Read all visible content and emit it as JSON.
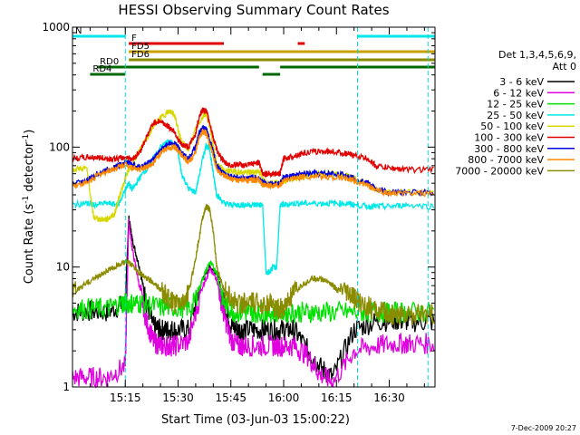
{
  "chart_data": {
    "type": "line",
    "title": "HESSI Observing Summary Count Rates",
    "xlabel": "Start Time (03-Jun-03 15:00:22)",
    "ylabel_main": "Count Rate (s",
    "ylabel_sup1": "-1",
    "ylabel_mid": " detector",
    "ylabel_sup2": "-1",
    "ylabel_end": ")",
    "y_scale": "log",
    "ylim": [
      1,
      1000
    ],
    "xlim_minutes": [
      0,
      103
    ],
    "x_ticks": [
      {
        "label": "15:15",
        "minutes": 15
      },
      {
        "label": "15:30",
        "minutes": 30
      },
      {
        "label": "15:45",
        "minutes": 45
      },
      {
        "label": "16:00",
        "minutes": 60
      },
      {
        "label": "16:15",
        "minutes": 75
      },
      {
        "label": "16:30",
        "minutes": 90
      }
    ],
    "y_ticks": [
      {
        "label": "1",
        "value": 1
      },
      {
        "label": "10",
        "value": 10
      },
      {
        "label": "100",
        "value": 100
      },
      {
        "label": "1000",
        "value": 1000
      }
    ],
    "legend_header": [
      "Det 1,3,4,5,6,9,",
      "Att 0"
    ],
    "legend_position": "right",
    "series": [
      {
        "name": "3 - 6 keV",
        "color": "#000000",
        "x": [
          0,
          5,
          10,
          15,
          16,
          17,
          19,
          21,
          23,
          25,
          27,
          29,
          33,
          37,
          39,
          41,
          43,
          45,
          47,
          49,
          53,
          57,
          60,
          63,
          67,
          70,
          74,
          80,
          86,
          92,
          96,
          103
        ],
        "y": [
          4.2,
          4.3,
          4.2,
          5,
          26,
          17,
          10,
          5,
          3.2,
          3,
          3,
          3,
          3,
          8,
          10,
          9,
          5,
          3.3,
          3,
          3,
          3,
          3,
          3,
          3,
          2,
          1.5,
          1.2,
          3,
          3.5,
          3.6,
          3.5,
          3.5
        ]
      },
      {
        "name": "6 - 12 keV",
        "color": "#e000e0",
        "x": [
          0,
          5,
          10,
          15,
          16,
          17,
          19,
          21,
          23,
          25,
          27,
          29,
          33,
          37,
          39,
          41,
          43,
          45,
          47,
          49,
          53,
          57,
          60,
          63,
          67,
          70,
          74,
          80,
          86,
          92,
          96,
          103
        ],
        "y": [
          1.2,
          1.2,
          1.2,
          1.5,
          24,
          14,
          7,
          3.5,
          2.4,
          2.2,
          2.2,
          2.2,
          2.4,
          7,
          9.5,
          8,
          4,
          2.5,
          2.2,
          2.2,
          2.2,
          2.2,
          2.2,
          2.2,
          1.8,
          1.3,
          1.1,
          2,
          2.2,
          2.3,
          2.3,
          2.3
        ]
      },
      {
        "name": "12 - 25 keV",
        "color": "#00e000",
        "x": [
          0,
          5,
          10,
          14,
          15,
          17,
          20,
          25,
          30,
          34,
          37,
          39,
          41,
          43,
          46,
          50,
          52,
          55,
          58,
          62,
          66,
          70,
          76,
          82,
          86,
          90,
          95,
          103
        ],
        "y": [
          4.5,
          4.5,
          4.5,
          5,
          5,
          5,
          5,
          4.6,
          4.6,
          4.6,
          8,
          11,
          9,
          5,
          4.2,
          4.2,
          4.2,
          4.2,
          4.2,
          4.2,
          4.2,
          4.2,
          4.2,
          4.2,
          4.2,
          4.2,
          4.2,
          4.2
        ]
      },
      {
        "name": "25 - 50 keV",
        "color": "#00e8e8",
        "x": [
          0,
          4,
          6,
          10,
          13,
          15,
          16,
          17,
          19,
          22,
          25,
          27,
          29,
          30,
          31,
          33,
          35,
          37,
          38,
          39,
          40,
          41,
          43,
          45,
          47,
          49,
          51,
          53,
          54,
          55,
          56,
          57,
          58,
          59,
          60,
          63,
          66,
          70,
          74,
          78,
          80,
          84,
          86,
          90,
          95,
          103
        ],
        "y": [
          33,
          34,
          33,
          34,
          33,
          44,
          50,
          44,
          55,
          72,
          100,
          110,
          108,
          90,
          60,
          45,
          42,
          80,
          105,
          95,
          60,
          40,
          34,
          33,
          33,
          33,
          33,
          33,
          33,
          9,
          9,
          10,
          10,
          33,
          33,
          34,
          34,
          34,
          34,
          34,
          33,
          32,
          32,
          32,
          33,
          32
        ]
      },
      {
        "name": "50 - 100 keV",
        "color": "#d8d800",
        "x": [
          0,
          4,
          6,
          8,
          10,
          12,
          13,
          15,
          16,
          17,
          19,
          21,
          23,
          25,
          27,
          28,
          29,
          30,
          31,
          33,
          35,
          37,
          38,
          39,
          40,
          41,
          43,
          45,
          47,
          49,
          51,
          53,
          54,
          55,
          57,
          59,
          60,
          63,
          66,
          70,
          74,
          78,
          80,
          84,
          86,
          90,
          95,
          103
        ],
        "y": [
          65,
          67,
          26,
          25,
          25,
          28,
          36,
          55,
          65,
          70,
          95,
          115,
          150,
          175,
          195,
          200,
          185,
          140,
          110,
          95,
          140,
          180,
          190,
          150,
          100,
          72,
          64,
          63,
          62,
          61,
          62,
          63,
          55,
          50,
          50,
          51,
          52,
          54,
          58,
          60,
          60,
          58,
          55,
          48,
          45,
          42,
          42,
          42
        ]
      },
      {
        "name": "100 - 300 keV",
        "color": "#e00000",
        "x": [
          0,
          4,
          7,
          10,
          13,
          15,
          17,
          19,
          21,
          23,
          25,
          27,
          29,
          30,
          31,
          33,
          35,
          36,
          37,
          38,
          39,
          40,
          41,
          43,
          45,
          47,
          49,
          51,
          53,
          54,
          55,
          57,
          59,
          60,
          63,
          66,
          70,
          74,
          78,
          80,
          84,
          86,
          90,
          95,
          103
        ],
        "y": [
          80,
          82,
          82,
          80,
          80,
          82,
          80,
          90,
          120,
          160,
          165,
          150,
          135,
          115,
          105,
          100,
          130,
          180,
          205,
          200,
          160,
          120,
          95,
          75,
          70,
          72,
          70,
          72,
          75,
          60,
          60,
          60,
          60,
          80,
          85,
          90,
          92,
          92,
          88,
          85,
          80,
          70,
          67,
          65,
          65
        ]
      },
      {
        "name": "300 - 800 keV",
        "color": "#0000e0",
        "x": [
          0,
          4,
          7,
          10,
          13,
          15,
          17,
          19,
          21,
          23,
          25,
          27,
          29,
          30,
          31,
          33,
          35,
          36,
          37,
          38,
          39,
          40,
          41,
          43,
          45,
          47,
          49,
          51,
          53,
          54,
          55,
          57,
          59,
          60,
          63,
          66,
          70,
          74,
          78,
          80,
          84,
          86,
          90,
          95,
          103
        ],
        "y": [
          50,
          52,
          60,
          65,
          70,
          75,
          72,
          68,
          72,
          80,
          95,
          105,
          108,
          100,
          90,
          80,
          100,
          130,
          145,
          140,
          115,
          90,
          70,
          60,
          57,
          55,
          55,
          56,
          55,
          50,
          50,
          50,
          50,
          56,
          58,
          60,
          60,
          60,
          58,
          55,
          50,
          45,
          42,
          42,
          42
        ]
      },
      {
        "name": "800 - 7000 keV",
        "color": "#ff8800",
        "x": [
          0,
          4,
          7,
          10,
          13,
          15,
          17,
          19,
          21,
          23,
          25,
          27,
          29,
          30,
          31,
          33,
          35,
          36,
          37,
          38,
          39,
          40,
          41,
          43,
          45,
          47,
          49,
          51,
          53,
          54,
          55,
          57,
          59,
          60,
          63,
          66,
          70,
          74,
          78,
          80,
          84,
          86,
          90,
          95,
          103
        ],
        "y": [
          48,
          50,
          58,
          63,
          68,
          72,
          68,
          65,
          68,
          75,
          88,
          98,
          100,
          95,
          85,
          75,
          92,
          120,
          135,
          130,
          105,
          85,
          65,
          57,
          54,
          53,
          53,
          53,
          53,
          48,
          48,
          48,
          48,
          53,
          55,
          57,
          57,
          56,
          55,
          52,
          48,
          44,
          41,
          41,
          41
        ]
      },
      {
        "name": "7000 - 20000 keV",
        "color": "#8b8b00",
        "x": [
          0,
          3,
          6,
          9,
          12,
          15,
          17,
          19,
          21,
          23,
          25,
          27,
          29,
          31,
          33,
          35,
          37,
          38,
          39,
          40,
          41,
          43,
          45,
          47,
          50,
          53,
          56,
          58,
          60,
          62,
          65,
          68,
          70,
          73,
          75,
          78,
          80,
          82,
          85,
          88,
          90,
          93,
          96,
          99,
          103
        ],
        "y": [
          6,
          7,
          8,
          9,
          10,
          11,
          10.5,
          9,
          8,
          7.5,
          6.5,
          5.5,
          5,
          5,
          6,
          12,
          26,
          32,
          30,
          20,
          10,
          6.5,
          5.5,
          5,
          5,
          5,
          5,
          4.5,
          4.5,
          5.5,
          7,
          8,
          8,
          7.5,
          6.5,
          6,
          5.5,
          5,
          4.5,
          4.2,
          4,
          4,
          4,
          4,
          4
        ]
      }
    ],
    "mode_bars": [
      {
        "label": "N",
        "color": "#00e8e8",
        "row": 0,
        "segments": [
          [
            0,
            15
          ],
          [
            81,
            103
          ]
        ]
      },
      {
        "label": "F",
        "color": "#e00000",
        "row": 1,
        "segments": [
          [
            16,
            43
          ],
          [
            64,
            66
          ]
        ]
      },
      {
        "label": "FD5",
        "color": "#c8a000",
        "row": 2,
        "segments": [
          [
            16,
            103
          ]
        ]
      },
      {
        "label": "FD6",
        "color": "#8b8b00",
        "row": 3,
        "segments": [
          [
            16,
            103
          ]
        ]
      },
      {
        "label": "RD0",
        "color": "#006800",
        "row": 4,
        "segments": [
          [
            7,
            53
          ],
          [
            59,
            103
          ]
        ]
      },
      {
        "label": "RD4",
        "color": "#006800",
        "row": 5,
        "segments": [
          [
            5,
            15
          ],
          [
            54,
            59
          ]
        ]
      }
    ],
    "vlines_minutes": [
      15,
      81,
      101
    ],
    "timestamp": "7-Dec-2009 20:27"
  }
}
